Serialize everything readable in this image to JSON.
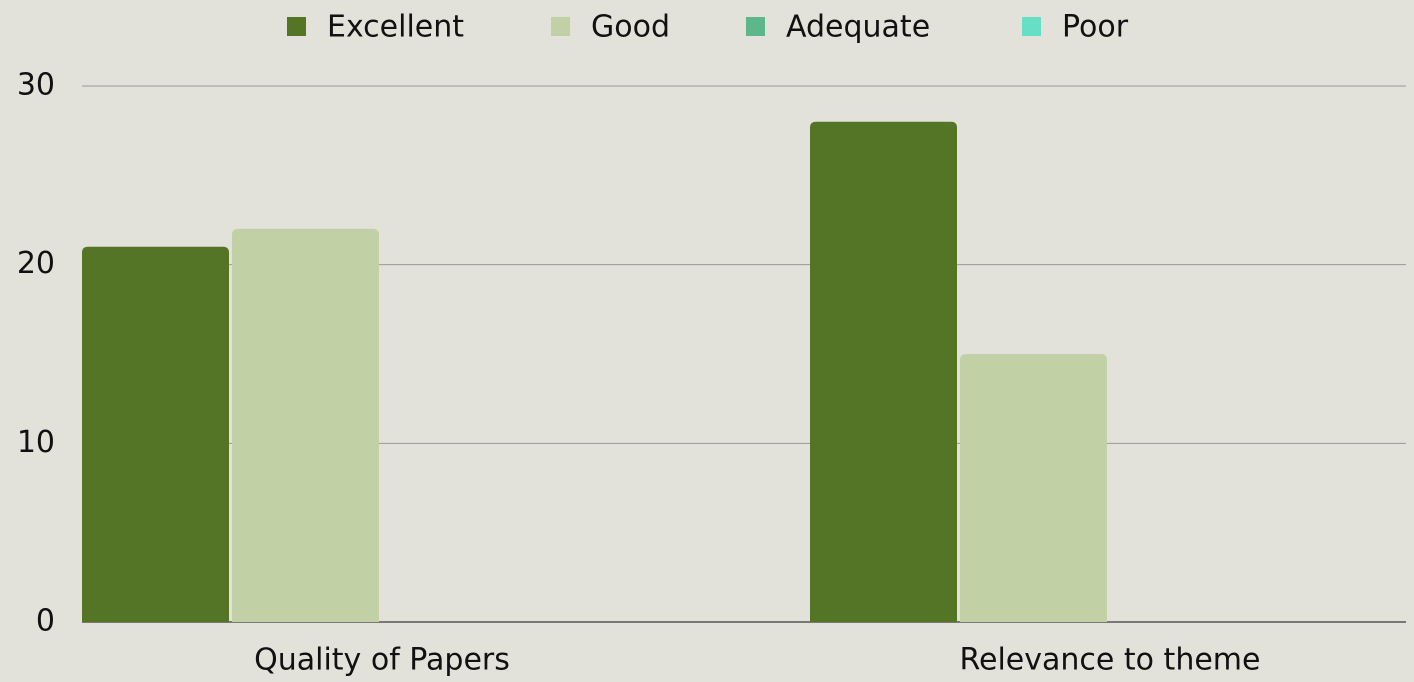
{
  "chart_data": {
    "type": "bar",
    "categories": [
      "Quality of Papers",
      "Relevance to theme"
    ],
    "series": [
      {
        "name": "Excellent",
        "color": "#547526",
        "values": [
          21,
          28
        ]
      },
      {
        "name": "Good",
        "color": "#c2d1a5",
        "values": [
          22,
          15
        ]
      },
      {
        "name": "Adequate",
        "color": "#5cb88a",
        "values": [
          0,
          0
        ]
      },
      {
        "name": "Poor",
        "color": "#66dfc6",
        "values": [
          0,
          0
        ]
      }
    ],
    "ylim": [
      0,
      30
    ],
    "yticks": [
      0,
      10,
      20,
      30
    ],
    "grid": true,
    "legend": "top"
  }
}
